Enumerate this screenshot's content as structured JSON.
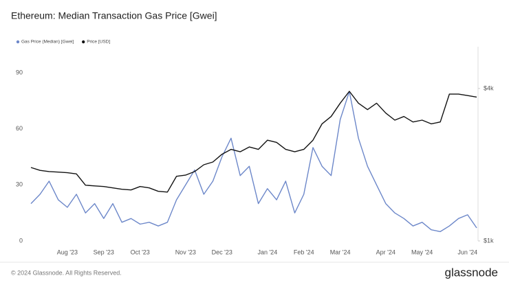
{
  "chart_data": {
    "type": "line",
    "title": "Ethereum: Median Transaction Gas Price [Gwei]",
    "categories": [
      null,
      null,
      null,
      null,
      "Aug '23",
      null,
      null,
      null,
      "Sep '23",
      null,
      null,
      null,
      "Oct '23",
      null,
      null,
      null,
      null,
      "Nov '23",
      null,
      null,
      null,
      "Dec '23",
      null,
      null,
      null,
      null,
      "Jan '24",
      null,
      null,
      null,
      "Feb '24",
      null,
      null,
      null,
      "Mar '24",
      null,
      null,
      null,
      null,
      "Apr '24",
      null,
      null,
      null,
      "May '24",
      null,
      null,
      null,
      null,
      "Jun '24",
      null
    ],
    "series": [
      {
        "name": "Gas Price (Median) [Gwei]",
        "color": "#6c87c9",
        "values": [
          20,
          25,
          32,
          22,
          18,
          25,
          15,
          20,
          12,
          20,
          10,
          12,
          9,
          10,
          8,
          10,
          22,
          30,
          38,
          25,
          32,
          45,
          55,
          35,
          40,
          20,
          28,
          22,
          32,
          15,
          25,
          50,
          40,
          35,
          65,
          80,
          55,
          40,
          30,
          20,
          15,
          12,
          8,
          10,
          6,
          5,
          8,
          12,
          14,
          7
        ]
      },
      {
        "name": "Price [USD]",
        "color": "#111111",
        "axis": "y2",
        "values": [
          1950,
          1900,
          1880,
          1870,
          1860,
          1840,
          1660,
          1650,
          1640,
          1620,
          1600,
          1590,
          1640,
          1620,
          1570,
          1560,
          1800,
          1820,
          1880,
          2000,
          2050,
          2200,
          2300,
          2250,
          2350,
          2300,
          2500,
          2450,
          2300,
          2250,
          2300,
          2500,
          2900,
          3100,
          3500,
          3900,
          3500,
          3300,
          3500,
          3200,
          3000,
          3100,
          2950,
          3000,
          2900,
          2950,
          3800,
          3800,
          3750,
          3700
        ]
      }
    ],
    "ylim": [
      0,
      104
    ],
    "yticks": [
      0,
      30,
      60,
      90
    ],
    "y2lim": [
      1000,
      5850
    ],
    "y2log": true,
    "y2ticks": [
      {
        "value": 1000,
        "label": "$1k"
      },
      {
        "value": 4000,
        "label": "$4k"
      }
    ],
    "legend": "top-left",
    "grid": false
  },
  "footer": "© 2024 Glassnode. All Rights Reserved.",
  "brand": "glassnode"
}
